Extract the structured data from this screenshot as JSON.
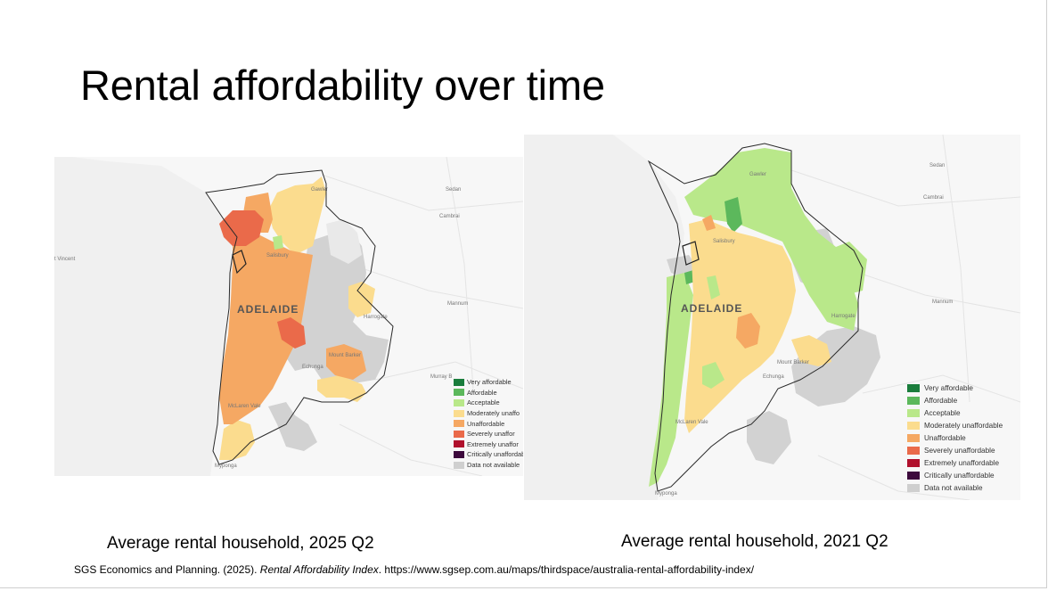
{
  "title": "Rental affordability over time",
  "legend_categories": [
    {
      "label": "Very affordable",
      "color": "#1a7d3c"
    },
    {
      "label": "Affordable",
      "color": "#5cb85c"
    },
    {
      "label": "Acceptable",
      "color": "#b9e88a"
    },
    {
      "label": "Moderately unaffordable",
      "color": "#fbdc8e"
    },
    {
      "label": "Unaffordable",
      "color": "#f5a863"
    },
    {
      "label": "Severely unaffordable",
      "color": "#ea6a4a"
    },
    {
      "label": "Extremely unaffordable",
      "color": "#b0102c"
    },
    {
      "label": "Critically unaffordable",
      "color": "#3d0a3d"
    },
    {
      "label": "Data not available",
      "color": "#cfcfcf"
    }
  ],
  "maps": {
    "left": {
      "caption": "Average rental household, 2025 Q2",
      "city_label": "ADELAIDE",
      "place_labels": {
        "gawler": "Gawler",
        "sedan": "Sedan",
        "cambrai": "Cambrai",
        "st_vincent": "t Vincent",
        "salisbury": "Salisbury",
        "harrogate": "Harrogate",
        "mannum": "Mannum",
        "mount_barker": "Mount Barker",
        "echunga": "Echunga",
        "murray_bridge": "Murray B",
        "mclaren_vale": "McLaren Vale",
        "myponga": "Myponga"
      },
      "legend": [
        "Very affordable",
        "Affordable",
        "Acceptable",
        "Moderately unaffo",
        "Unaffordable",
        "Severely unaffor",
        "Extremely unaffor",
        "Critically unaffordab",
        "Data not available"
      ]
    },
    "right": {
      "caption": "Average rental household, 2021 Q2",
      "city_label": "ADELAIDE",
      "place_labels": {
        "gawler": "Gawler",
        "sedan": "Sedan",
        "cambrai": "Cambrai",
        "salisbury": "Salisbury",
        "harrogate": "Harrogate",
        "mannum": "Mannum",
        "mount_barker": "Mount Barker",
        "echunga": "Echunga",
        "mclaren_vale": "McLaren Vale",
        "myponga": "Myponga"
      },
      "legend": [
        "Very affordable",
        "Affordable",
        "Acceptable",
        "Moderately unaffordable",
        "Unaffordable",
        "Severely unaffordable",
        "Extremely unaffordable",
        "Critically unaffordable",
        "Data not available"
      ]
    }
  },
  "citation": {
    "author": "SGS Economics and Planning. (2025). ",
    "work": "Rental Affordability Index",
    "rest": ". https://www.sgsep.com.au/maps/thirdspace/australia-rental-affordability-index/"
  }
}
